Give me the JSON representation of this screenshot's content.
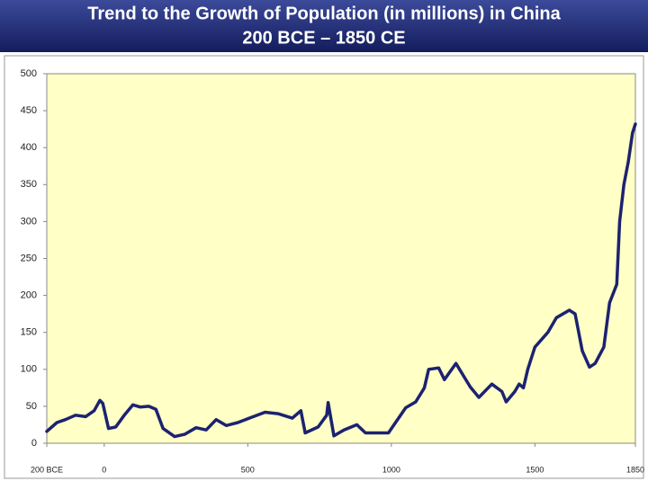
{
  "chart_data": {
    "type": "line",
    "title": "Trend to the Growth of Population (in millions) in China",
    "subtitle": "200 BCE – 1850 CE",
    "x": [
      -200,
      -165,
      -135,
      -100,
      -65,
      -35,
      -15,
      -5,
      15,
      40,
      70,
      100,
      125,
      155,
      180,
      205,
      245,
      280,
      320,
      355,
      390,
      425,
      465,
      505,
      560,
      605,
      655,
      685,
      700,
      745,
      775,
      780,
      800,
      835,
      880,
      910,
      990,
      1050,
      1085,
      1115,
      1130,
      1165,
      1185,
      1225,
      1275,
      1305,
      1350,
      1385,
      1400,
      1430,
      1445,
      1460,
      1475,
      1500,
      1545,
      1575,
      1620,
      1640,
      1665,
      1690,
      1710,
      1740,
      1760,
      1785,
      1795,
      1810,
      1825,
      1840,
      1850
    ],
    "series": [
      {
        "name": "Population",
        "color": "#1c2270",
        "values": [
          16,
          28,
          32,
          38,
          36,
          44,
          58,
          54,
          20,
          22,
          38,
          52,
          49,
          50,
          46,
          20,
          9,
          12,
          21,
          18,
          32,
          24,
          28,
          34,
          42,
          40,
          34,
          44,
          14,
          22,
          38,
          55,
          10,
          18,
          25,
          14,
          14,
          48,
          56,
          75,
          100,
          102,
          86,
          108,
          76,
          62,
          80,
          70,
          56,
          70,
          80,
          75,
          100,
          130,
          150,
          170,
          180,
          175,
          125,
          103,
          108,
          130,
          190,
          215,
          300,
          350,
          380,
          420,
          432
        ]
      }
    ],
    "xlim": [
      -200,
      1850
    ],
    "xticks": [
      {
        "value": -200,
        "label": "200 BCE"
      },
      0,
      500,
      1000,
      1500,
      1850
    ],
    "ylim": [
      0,
      500
    ],
    "yticks": [
      0,
      50,
      100,
      150,
      200,
      250,
      300,
      350,
      400,
      450,
      500
    ],
    "plot_background": "#ffffc6"
  }
}
